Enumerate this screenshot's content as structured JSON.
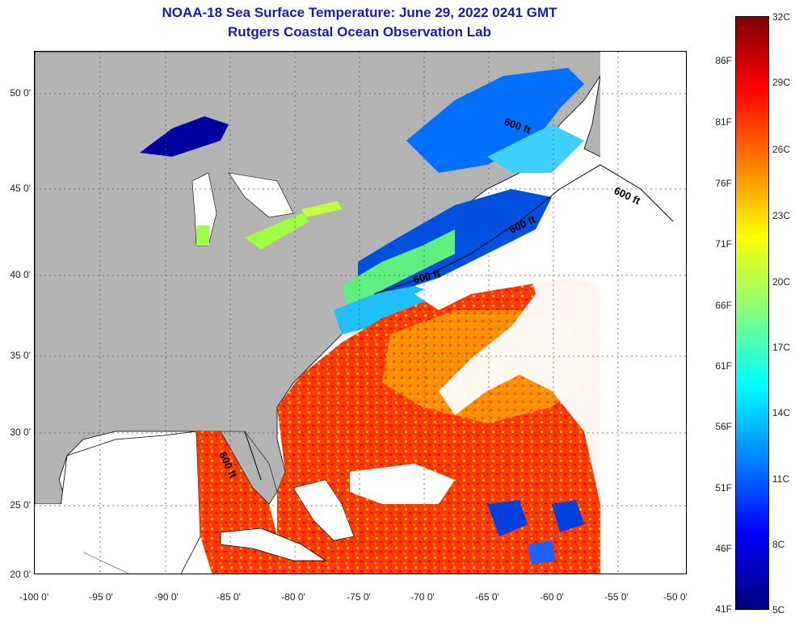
{
  "title": {
    "line1": "NOAA-18 Sea Surface Temperature:  June 29, 2022 0241 GMT",
    "line2": "Rutgers Coastal Ocean Observation Lab"
  },
  "map": {
    "lat_labels": [
      "50 0'",
      "45 0'",
      "40 0'",
      "35 0'",
      "30 0'",
      "25 0'",
      "20 0'"
    ],
    "lon_labels": [
      "-100 0'",
      "-95 0'",
      "-90 0'",
      "-85 0'",
      "-80 0'",
      "-75 0'",
      "-70 0'",
      "-65 0'",
      "-60 0'",
      "-55 0'",
      "-50 0'"
    ],
    "contour_label": "600 ft",
    "colors": {
      "land": "#b3b3b3",
      "no_data": "#ffffff",
      "coastline": "#000000",
      "grid": "#555555"
    }
  },
  "colorbar": {
    "f_labels": [
      "86F",
      "81F",
      "76F",
      "71F",
      "66F",
      "61F",
      "56F",
      "51F",
      "46F",
      "41F"
    ],
    "c_labels": [
      "32C",
      "29C",
      "26C",
      "23C",
      "20C",
      "17C",
      "14C",
      "11C",
      "8C",
      "5C"
    ],
    "colors": [
      "#000080",
      "#0000ff",
      "#0080ff",
      "#00ffff",
      "#80ff80",
      "#ffff00",
      "#ff8000",
      "#ff0000",
      "#800000"
    ]
  }
}
